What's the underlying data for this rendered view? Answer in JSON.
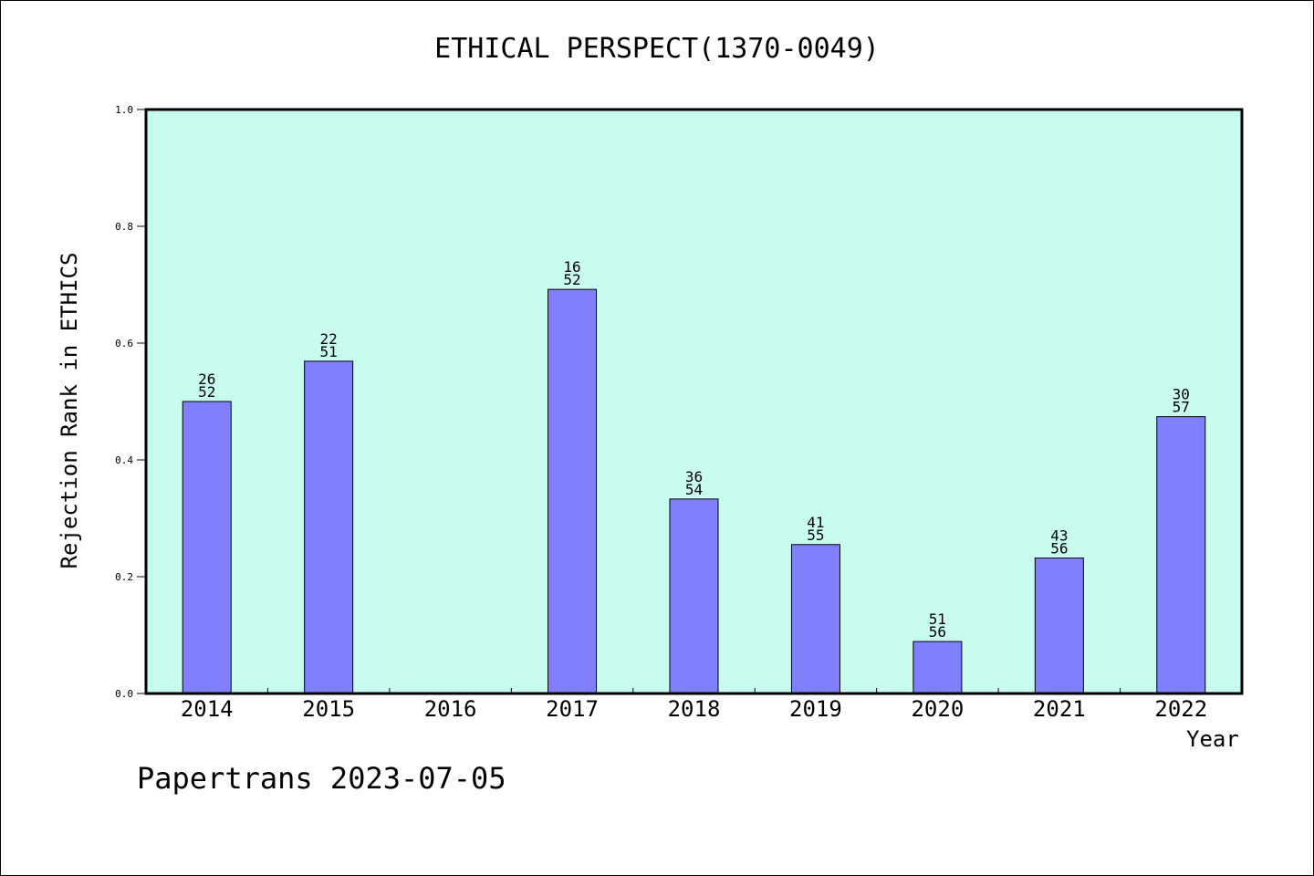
{
  "chart_data": {
    "type": "bar",
    "title": "ETHICAL PERSPECT(1370-0049)",
    "xlabel": "Year",
    "ylabel": "Rejection Rank in ETHICS",
    "footer": "Papertrans 2023-07-05",
    "categories": [
      "2014",
      "2015",
      "2016",
      "2017",
      "2018",
      "2019",
      "2020",
      "2021",
      "2022"
    ],
    "values": [
      0.5,
      0.569,
      null,
      0.692,
      0.333,
      0.255,
      0.089,
      0.232,
      0.474
    ],
    "bar_labels": [
      {
        "top": "26",
        "bottom": "52"
      },
      {
        "top": "22",
        "bottom": "51"
      },
      null,
      {
        "top": "16",
        "bottom": "52"
      },
      {
        "top": "36",
        "bottom": "54"
      },
      {
        "top": "41",
        "bottom": "55"
      },
      {
        "top": "51",
        "bottom": "56"
      },
      {
        "top": "43",
        "bottom": "56"
      },
      {
        "top": "30",
        "bottom": "57"
      }
    ],
    "ylim": [
      0,
      1.0
    ],
    "yticks": [
      "0.0",
      "0.2",
      "0.4",
      "0.6",
      "0.8",
      "1.0"
    ],
    "colors": {
      "plot_background": "#c8fcef",
      "bar": "#8080ff",
      "bar_edge": "#000000"
    }
  }
}
